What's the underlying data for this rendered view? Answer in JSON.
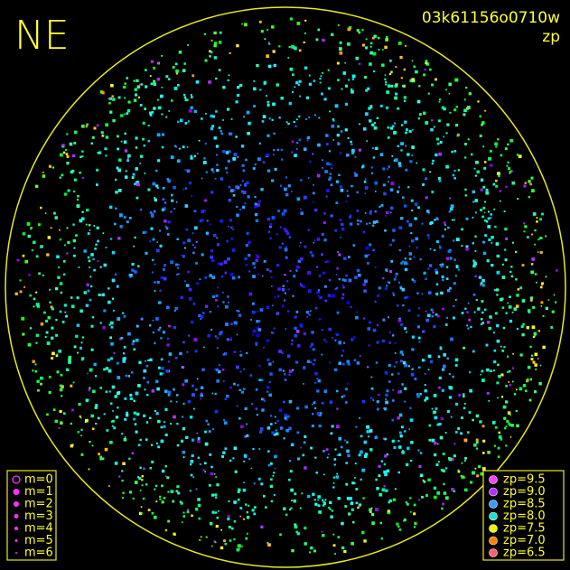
{
  "corner_label": "NE",
  "image_id": "03k61156o0710w",
  "color_key": "zp",
  "magnitude_legend": [
    "m=0",
    "m=1",
    "m=2",
    "m=3",
    "m=4",
    "m=5",
    "m=6"
  ],
  "zp_legend": [
    {
      "label": "zp=9.5",
      "color": "#ff40ff"
    },
    {
      "label": "zp=9.0",
      "color": "#b030ff"
    },
    {
      "label": "zp=8.5",
      "color": "#30a0ff"
    },
    {
      "label": "zp=8.0",
      "color": "#20e0d0"
    },
    {
      "label": "zp=7.5",
      "color": "#f0f000"
    },
    {
      "label": "zp=7.0",
      "color": "#ff8000"
    },
    {
      "label": "zp=6.5",
      "color": "#ff6070"
    }
  ]
}
